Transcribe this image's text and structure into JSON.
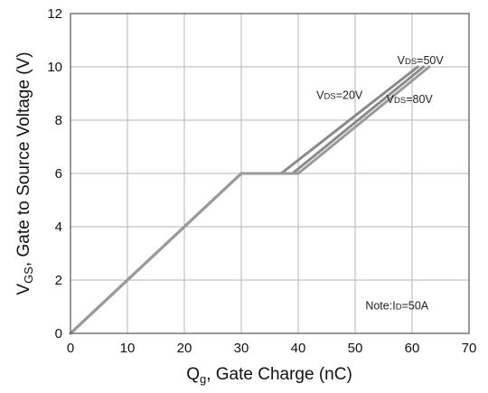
{
  "chart_data": {
    "type": "line",
    "xlabel": {
      "main": "Q",
      "sub": "g",
      "rest": ", Gate Charge (nC)"
    },
    "ylabel": {
      "main": "V",
      "sub": "GS",
      "rest": ", Gate to Source Voltage (V)"
    },
    "xlim": [
      0,
      70
    ],
    "ylim": [
      0,
      12
    ],
    "x_ticks": [
      0,
      10,
      20,
      30,
      40,
      50,
      60,
      70
    ],
    "y_ticks": [
      0,
      2,
      4,
      6,
      8,
      10,
      12
    ],
    "grid": true,
    "series": [
      {
        "name": "VDS=20V",
        "color": "#8a8a8a",
        "points": [
          [
            0,
            0
          ],
          [
            30,
            6
          ],
          [
            37,
            6
          ],
          [
            61,
            10
          ]
        ]
      },
      {
        "name": "VDS=50V",
        "color": "#8a8a8a",
        "points": [
          [
            0,
            0
          ],
          [
            30,
            6
          ],
          [
            39,
            6
          ],
          [
            62,
            10
          ]
        ]
      },
      {
        "name": "VDS=80V",
        "color": "#9a9a9a",
        "points": [
          [
            0,
            0
          ],
          [
            30,
            6
          ],
          [
            40,
            6
          ],
          [
            63,
            10
          ]
        ]
      }
    ],
    "annotations": [
      {
        "id": "vds20",
        "main": "V",
        "sub": "DS",
        "rest": "=20V",
        "x": 43.2,
        "y": 8.8
      },
      {
        "id": "vds50",
        "main": "V",
        "sub": "DS",
        "rest": "=50V",
        "x": 57.4,
        "y": 10.1
      },
      {
        "id": "vds80",
        "main": "V",
        "sub": "DS",
        "rest": "=80V",
        "x": 55.5,
        "y": 8.65
      },
      {
        "id": "note",
        "main": "Note:I",
        "sub": "D",
        "rest": "=50A",
        "x": 51.8,
        "y": 0.9
      }
    ]
  }
}
